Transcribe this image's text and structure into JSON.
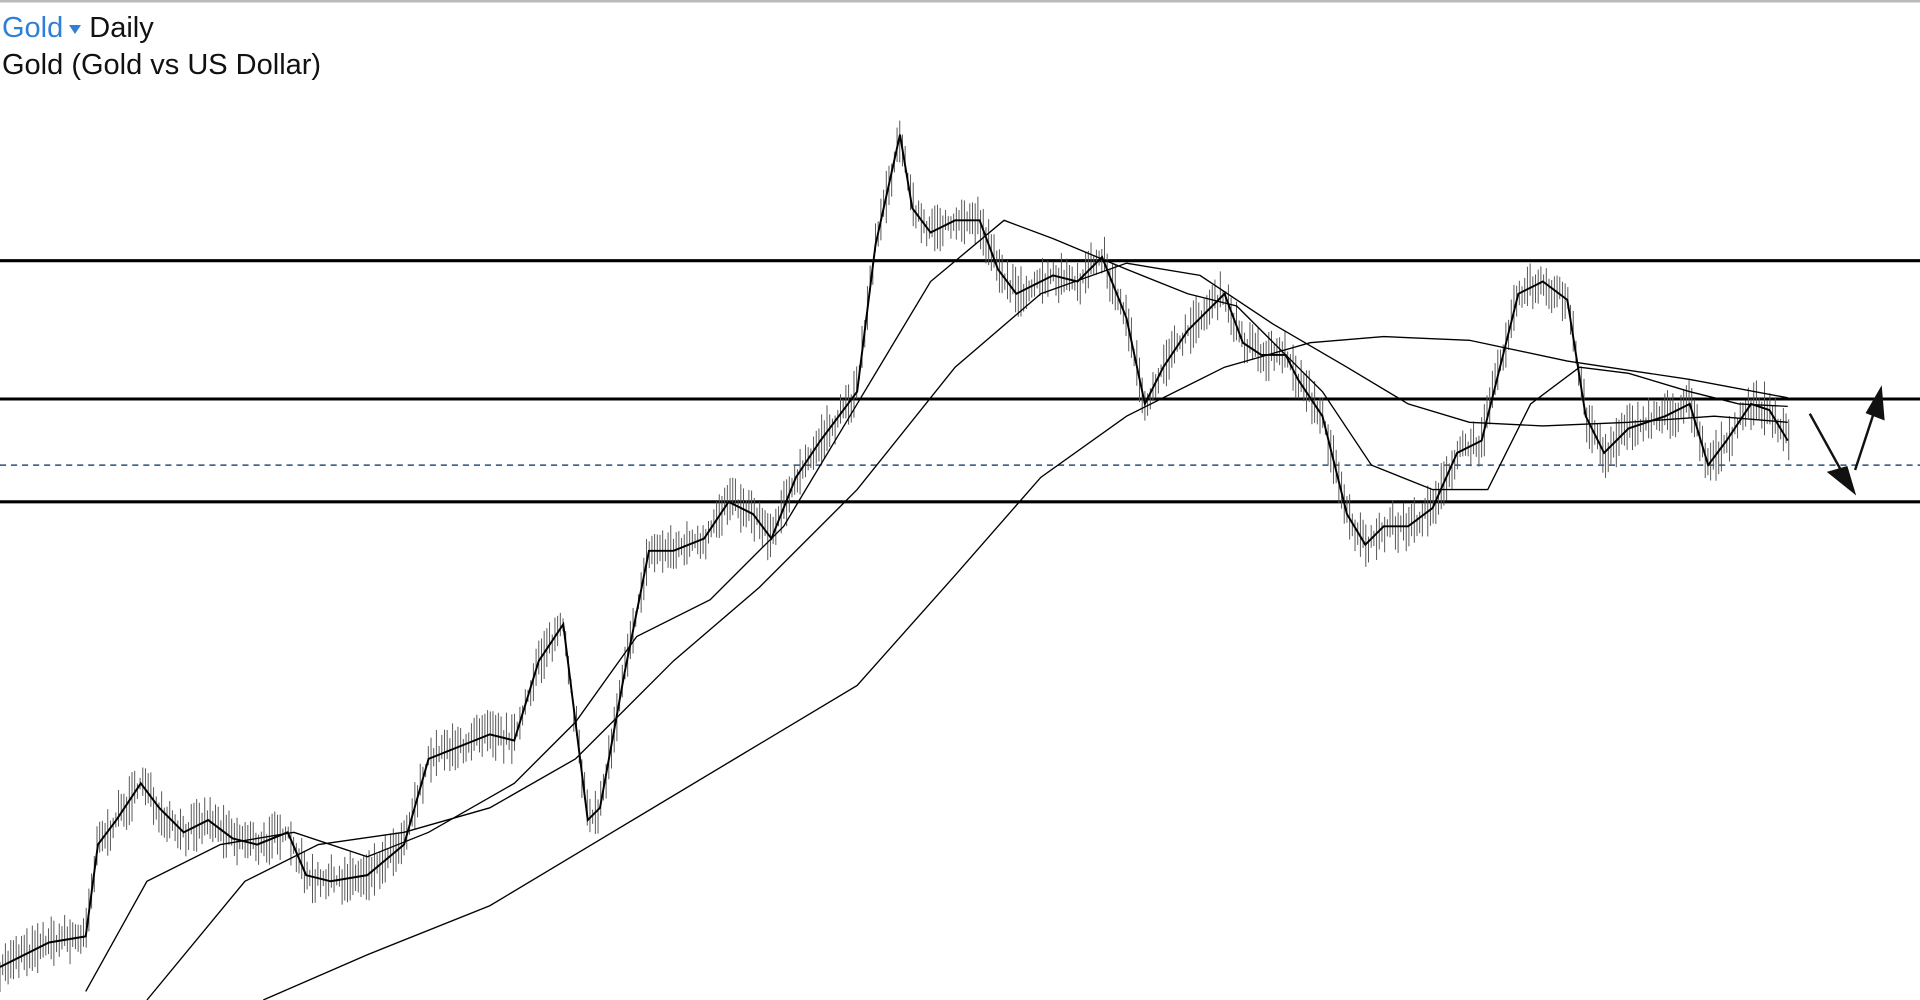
{
  "header": {
    "symbol": "Gold",
    "interval": "Daily",
    "description": "Gold (Gold vs US Dollar)"
  }
}
